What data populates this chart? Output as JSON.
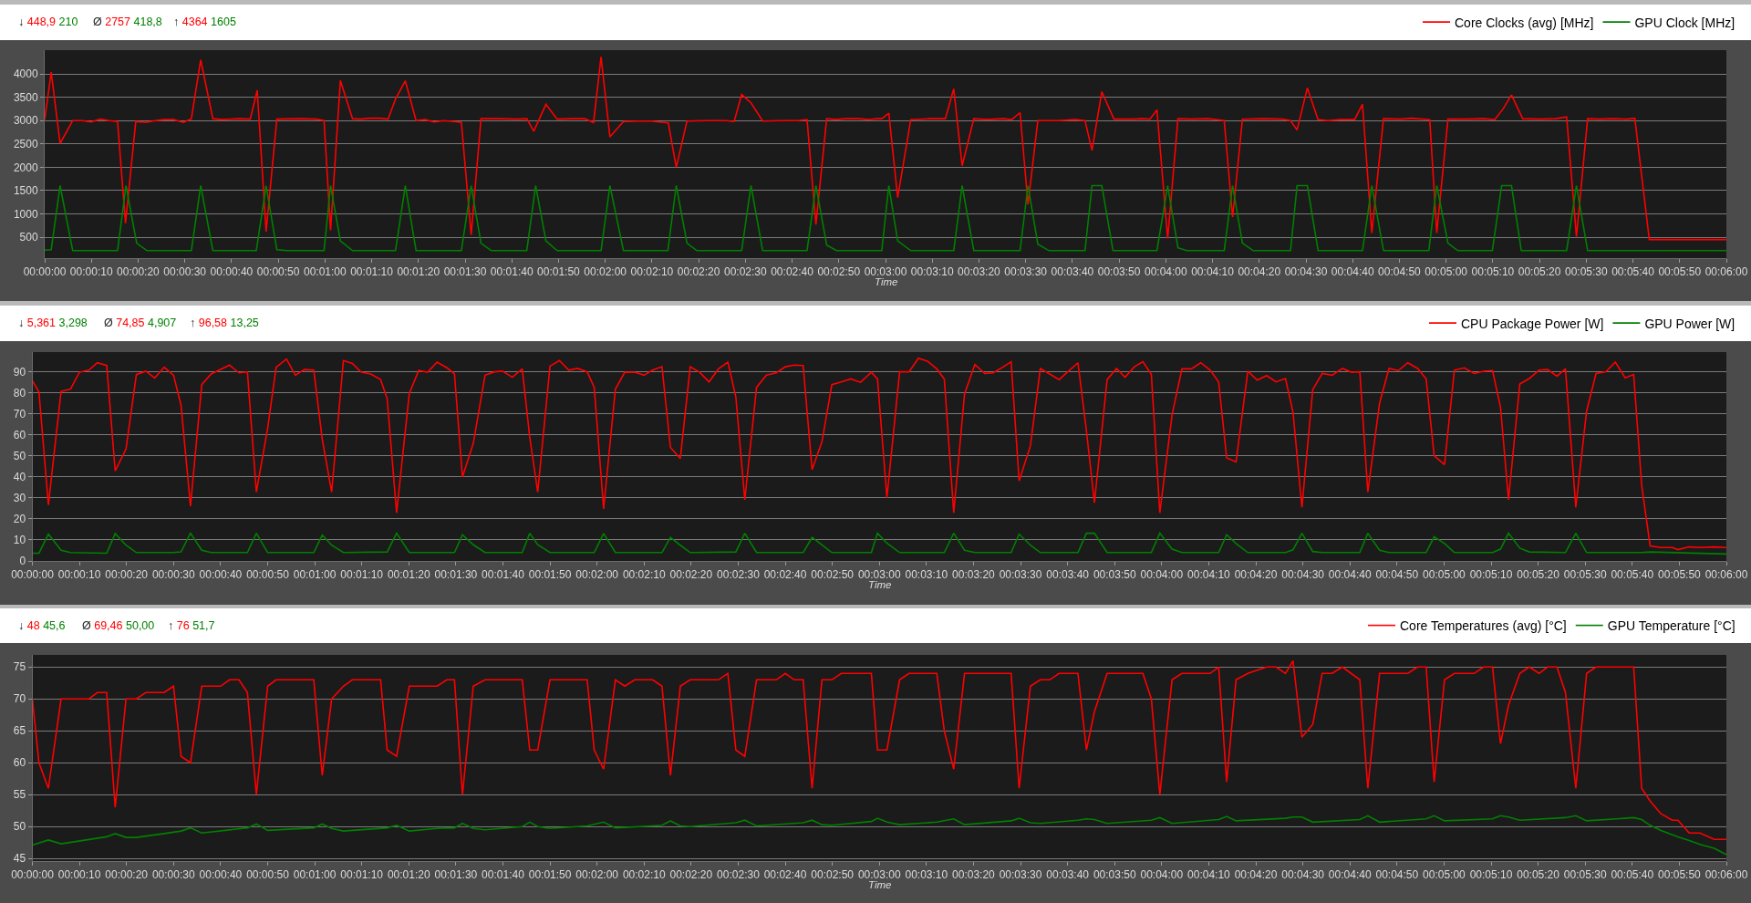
{
  "chart_data": [
    {
      "type": "line",
      "xlabel": "Time",
      "annotations": [
        "↓ 448,9 210",
        "Ø 2757 418,8",
        "↑ 4364 1605"
      ],
      "legend": "top right",
      "grid": "y",
      "xlim": [
        0,
        360
      ],
      "ylim": [
        50,
        4510
      ],
      "yticks": [
        500,
        1000,
        1500,
        2000,
        2500,
        3000,
        3500,
        4000
      ],
      "xticks": [
        {
          "value": 0,
          "label": "00:00:00"
        },
        {
          "value": 10,
          "label": "00:00:10"
        },
        {
          "value": 20,
          "label": "00:00:20"
        },
        {
          "value": 30,
          "label": "00:00:30"
        },
        {
          "value": 40,
          "label": "00:00:40"
        },
        {
          "value": 50,
          "label": "00:00:50"
        },
        {
          "value": 60,
          "label": "00:01:00"
        },
        {
          "value": 70,
          "label": "00:01:10"
        },
        {
          "value": 80,
          "label": "00:01:20"
        },
        {
          "value": 90,
          "label": "00:01:30"
        },
        {
          "value": 100,
          "label": "00:01:40"
        },
        {
          "value": 110,
          "label": "00:01:50"
        },
        {
          "value": 120,
          "label": "00:02:00"
        },
        {
          "value": 130,
          "label": "00:02:10"
        },
        {
          "value": 140,
          "label": "00:02:20"
        },
        {
          "value": 150,
          "label": "00:02:30"
        },
        {
          "value": 160,
          "label": "00:02:40"
        },
        {
          "value": 170,
          "label": "00:02:50"
        },
        {
          "value": 180,
          "label": "00:03:00"
        },
        {
          "value": 190,
          "label": "00:03:10"
        },
        {
          "value": 200,
          "label": "00:03:20"
        },
        {
          "value": 210,
          "label": "00:03:30"
        },
        {
          "value": 220,
          "label": "00:03:40"
        },
        {
          "value": 230,
          "label": "00:03:50"
        },
        {
          "value": 240,
          "label": "00:04:00"
        },
        {
          "value": 250,
          "label": "00:04:10"
        },
        {
          "value": 260,
          "label": "00:04:20"
        },
        {
          "value": 270,
          "label": "00:04:30"
        },
        {
          "value": 280,
          "label": "00:04:40"
        },
        {
          "value": 290,
          "label": "00:04:50"
        },
        {
          "value": 300,
          "label": "00:05:00"
        },
        {
          "value": 310,
          "label": "00:05:10"
        },
        {
          "value": 320,
          "label": "00:05:20"
        },
        {
          "value": 330,
          "label": "00:05:30"
        },
        {
          "value": 340,
          "label": "00:05:40"
        },
        {
          "value": 350,
          "label": "00:05:50"
        },
        {
          "value": 360,
          "label": "00:06:00"
        }
      ],
      "series": [
        {
          "name": "Core Clocks (avg) [MHz]",
          "color": "#ff0000",
          "x": [
            0,
            1.4,
            3.3,
            6.0,
            8.1,
            9.9,
            11.9,
            13.8,
            15.6,
            17.3,
            19.5,
            21.6,
            23.7,
            25.6,
            27.6,
            29.7,
            31.4,
            33.4,
            36.0,
            38.0,
            41.5,
            44.0,
            45.5,
            47.4,
            49.7,
            54.6,
            58.1,
            59.8,
            61.2,
            63.3,
            65.9,
            67.6,
            69.6,
            71.6,
            73.5,
            75.1,
            77.2,
            79.5,
            81.4,
            83.4,
            85.4,
            87.7,
            89.2,
            91.3,
            93.4,
            97.2,
            101.3,
            103.2,
            104.7,
            107.3,
            109.7,
            113.2,
            115.6,
            117.5,
            119.1,
            121.0,
            123.9,
            126.9,
            129.9,
            131.6,
            133.5,
            135.2,
            137.5,
            141.7,
            145.8,
            147.6,
            149.2,
            151.2,
            153.7,
            157.7,
            161.3,
            163.2,
            165.1,
            167.4,
            169.5,
            171.3,
            174.3,
            176.4,
            178.1,
            179.2,
            180.7,
            182.6,
            185.4,
            189.3,
            192.8,
            194.6,
            196.4,
            198.9,
            201.7,
            205.2,
            207.0,
            208.8,
            210.5,
            212.6,
            217.1,
            220.6,
            222.7,
            224.2,
            226.3,
            228.9,
            233.0,
            234.8,
            236.6,
            238.1,
            240.4,
            242.6,
            245.4,
            249.0,
            252.5,
            254.3,
            256.4,
            260.8,
            264.9,
            266.7,
            268.1,
            270.3,
            272.6,
            274.7,
            277.4,
            280.4,
            282.1,
            284.1,
            286.6,
            290.4,
            292.5,
            296.5,
            298.0,
            300.4,
            304.5,
            308.1,
            310.4,
            312.2,
            314.0,
            316.4,
            319.9,
            323.5,
            325.8,
            327.9,
            330.3,
            332.9,
            335.9,
            338.8,
            340.4,
            343.5,
            360
          ],
          "values": [
            3020,
            4040,
            2510,
            3000,
            3000,
            2970,
            3030,
            3000,
            2980,
            800,
            2980,
            2960,
            3000,
            3020,
            3020,
            2960,
            3040,
            4300,
            3040,
            3020,
            3040,
            3030,
            3650,
            620,
            3030,
            3040,
            3030,
            3000,
            650,
            3860,
            3040,
            3030,
            3050,
            3050,
            3030,
            3460,
            3850,
            3000,
            3020,
            2970,
            3000,
            2980,
            2960,
            550,
            3040,
            3040,
            3030,
            3040,
            2770,
            3350,
            3030,
            3040,
            3040,
            2960,
            4364,
            2650,
            2980,
            2990,
            2990,
            2970,
            2950,
            2000,
            2990,
            3000,
            3000,
            2980,
            3560,
            3380,
            2990,
            3000,
            3000,
            3020,
            770,
            3040,
            3020,
            3040,
            3040,
            3020,
            3040,
            3040,
            3160,
            1350,
            3020,
            3040,
            3040,
            3680,
            2030,
            3040,
            3020,
            3040,
            3020,
            3170,
            1200,
            3000,
            3000,
            3020,
            3000,
            2360,
            3620,
            3030,
            3030,
            3040,
            3030,
            3230,
            470,
            3040,
            3030,
            3040,
            3000,
            930,
            3030,
            3040,
            3030,
            3000,
            2800,
            3700,
            3020,
            3000,
            3020,
            3020,
            3350,
            590,
            3040,
            3030,
            3050,
            3020,
            590,
            3030,
            3030,
            3040,
            3020,
            3250,
            3550,
            3040,
            3030,
            3040,
            3080,
            510,
            3040,
            3030,
            3040,
            3030,
            3050,
            449,
            449
          ]
        },
        {
          "name": "GPU Clock [MHz]",
          "color": "#008000",
          "x": [
            0,
            1.4,
            3.3,
            6.0,
            15.6,
            17.4,
            19.7,
            21.9,
            31.4,
            33.4,
            36.0,
            45.3,
            47.4,
            49.7,
            51.9,
            59.8,
            61.2,
            63.3,
            65.9,
            75.1,
            77.2,
            79.5,
            89.2,
            91.3,
            93.4,
            95.6,
            103.2,
            105.1,
            107.3,
            109.7,
            119.1,
            121.0,
            123.9,
            133.4,
            135.2,
            137.5,
            139.6,
            149.2,
            151.2,
            153.7,
            163.2,
            165.1,
            167.4,
            169.5,
            179.2,
            180.7,
            182.6,
            185.4,
            194.6,
            196.4,
            198.9,
            208.8,
            210.5,
            212.6,
            215.0,
            222.7,
            224.2,
            226.3,
            228.7,
            238.1,
            240.4,
            242.6,
            244.5,
            252.5,
            254.3,
            256.4,
            258.7,
            266.7,
            268.1,
            270.3,
            272.6,
            282.1,
            284.1,
            286.6,
            296.3,
            298.0,
            300.4,
            302.5,
            309.9,
            311.9,
            314.0,
            316.1,
            325.8,
            327.9,
            330.3,
            360
          ],
          "values": [
            220,
            230,
            1605,
            210,
            210,
            1605,
            370,
            210,
            210,
            1605,
            210,
            210,
            1605,
            230,
            210,
            210,
            1605,
            420,
            210,
            210,
            1605,
            210,
            210,
            1605,
            370,
            210,
            210,
            1605,
            420,
            210,
            210,
            1605,
            210,
            210,
            1605,
            370,
            210,
            210,
            1605,
            210,
            210,
            1605,
            330,
            210,
            210,
            1605,
            420,
            210,
            210,
            1605,
            210,
            210,
            1605,
            350,
            210,
            210,
            1605,
            1605,
            210,
            210,
            1605,
            270,
            210,
            210,
            1605,
            370,
            210,
            210,
            1605,
            1605,
            210,
            210,
            1605,
            210,
            210,
            1605,
            370,
            210,
            210,
            1605,
            1605,
            210,
            210,
            1605,
            210,
            210
          ]
        }
      ]
    },
    {
      "type": "line",
      "xlabel": "Time",
      "annotations": [
        "↓ 5,361 3,298",
        "Ø 74,85 4,907",
        "↑ 96,58 13,25"
      ],
      "legend": "top right",
      "grid": "y",
      "xlim": [
        0,
        360
      ],
      "ylim": [
        0,
        99.5
      ],
      "yticks": [
        0,
        10,
        20,
        30,
        40,
        50,
        60,
        70,
        80,
        90
      ],
      "xticks": [
        {
          "value": 0,
          "label": "00:00:00"
        },
        {
          "value": 10,
          "label": "00:00:10"
        },
        {
          "value": 20,
          "label": "00:00:20"
        },
        {
          "value": 30,
          "label": "00:00:30"
        },
        {
          "value": 40,
          "label": "00:00:40"
        },
        {
          "value": 50,
          "label": "00:00:50"
        },
        {
          "value": 60,
          "label": "00:01:00"
        },
        {
          "value": 70,
          "label": "00:01:10"
        },
        {
          "value": 80,
          "label": "00:01:20"
        },
        {
          "value": 90,
          "label": "00:01:30"
        },
        {
          "value": 100,
          "label": "00:01:40"
        },
        {
          "value": 110,
          "label": "00:01:50"
        },
        {
          "value": 120,
          "label": "00:02:00"
        },
        {
          "value": 130,
          "label": "00:02:10"
        },
        {
          "value": 140,
          "label": "00:02:20"
        },
        {
          "value": 150,
          "label": "00:02:30"
        },
        {
          "value": 160,
          "label": "00:02:40"
        },
        {
          "value": 170,
          "label": "00:02:50"
        },
        {
          "value": 180,
          "label": "00:03:00"
        },
        {
          "value": 190,
          "label": "00:03:10"
        },
        {
          "value": 200,
          "label": "00:03:20"
        },
        {
          "value": 210,
          "label": "00:03:30"
        },
        {
          "value": 220,
          "label": "00:03:40"
        },
        {
          "value": 230,
          "label": "00:03:50"
        },
        {
          "value": 240,
          "label": "00:04:00"
        },
        {
          "value": 250,
          "label": "00:04:10"
        },
        {
          "value": 260,
          "label": "00:04:20"
        },
        {
          "value": 270,
          "label": "00:04:30"
        },
        {
          "value": 280,
          "label": "00:04:40"
        },
        {
          "value": 290,
          "label": "00:04:50"
        },
        {
          "value": 300,
          "label": "00:05:00"
        },
        {
          "value": 310,
          "label": "00:05:10"
        },
        {
          "value": 320,
          "label": "00:05:20"
        },
        {
          "value": 330,
          "label": "00:05:30"
        },
        {
          "value": 340,
          "label": "00:05:40"
        },
        {
          "value": 350,
          "label": "00:05:50"
        },
        {
          "value": 360,
          "label": "00:06:00"
        }
      ],
      "series": [
        {
          "name": "CPU Package Power [W]",
          "color": "#ff0000",
          "x": [
            0,
            1.4,
            3.4,
            6.1,
            8.1,
            10.0,
            12.0,
            13.8,
            15.8,
            17.6,
            19.9,
            22.1,
            24.1,
            26.0,
            28.0,
            30.0,
            31.6,
            33.6,
            36.0,
            38.0,
            41.9,
            43.9,
            45.7,
            47.6,
            50.0,
            51.8,
            54.0,
            55.9,
            57.8,
            59.8,
            61.6,
            63.6,
            66.1,
            68.0,
            69.9,
            71.9,
            74.0,
            75.4,
            77.4,
            80.1,
            82.1,
            84.0,
            86.0,
            88.1,
            89.7,
            91.4,
            93.7,
            96.2,
            98.2,
            99.9,
            102.0,
            104.1,
            105.7,
            107.4,
            110.0,
            112.0,
            114.0,
            115.9,
            117.9,
            119.4,
            121.4,
            123.9,
            125.9,
            128.0,
            130.0,
            131.8,
            133.8,
            135.6,
            137.7,
            139.8,
            141.8,
            143.8,
            145.8,
            147.8,
            149.5,
            151.4,
            153.9,
            156.0,
            158.1,
            160.0,
            161.9,
            163.8,
            165.7,
            167.8,
            169.9,
            171.9,
            173.9,
            176.0,
            178.3,
            179.6,
            181.6,
            184.3,
            186.3,
            188.3,
            190.2,
            192.2,
            193.8,
            195.8,
            198.1,
            200.3,
            202.4,
            204.2,
            206.2,
            208.0,
            209.7,
            212.1,
            214.2,
            216.2,
            218.2,
            220.2,
            222.2,
            224.0,
            225.7,
            228.4,
            230.4,
            232.2,
            234.2,
            236.0,
            237.8,
            239.6,
            242.2,
            244.3,
            246.3,
            248.3,
            250.3,
            252.1,
            253.8,
            255.8,
            258.3,
            260.3,
            262.3,
            264.3,
            266.3,
            267.9,
            269.8,
            272.1,
            274.1,
            276.2,
            278.4,
            280.3,
            282.1,
            283.8,
            286.3,
            288.3,
            290.3,
            292.3,
            294.4,
            296.2,
            297.9,
            300.1,
            302.2,
            304.3,
            306.4,
            308.4,
            310.3,
            312.0,
            313.7,
            316.1,
            318.1,
            320.2,
            322.0,
            324.0,
            325.8,
            328.0,
            330.3,
            332.3,
            334.4,
            336.4,
            338.5,
            340.3,
            342.0,
            343.8,
            346.1,
            348.5,
            349.7,
            352.1,
            354.4,
            357.4,
            360
          ],
          "values": [
            85.9,
            80.5,
            26.7,
            80.8,
            81.9,
            89.9,
            90.9,
            94.4,
            93.1,
            42.9,
            53.3,
            88.8,
            90.4,
            87.2,
            92.3,
            88.5,
            74.1,
            26.1,
            84.0,
            89.1,
            93.3,
            89.6,
            90.1,
            32.8,
            63.2,
            92.3,
            96.2,
            88.5,
            91.2,
            90.9,
            58.1,
            32.8,
            95.5,
            94.1,
            89.9,
            89.1,
            86.4,
            77.3,
            22.9,
            79.7,
            90.7,
            89.9,
            94.7,
            92.0,
            89.1,
            40.0,
            56.0,
            88.5,
            90.1,
            90.4,
            87.5,
            91.5,
            58.9,
            32.8,
            92.8,
            95.5,
            90.9,
            91.7,
            90.1,
            82.7,
            24.8,
            81.9,
            89.9,
            89.9,
            88.5,
            90.9,
            92.5,
            54.1,
            48.8,
            92.5,
            89.9,
            85.3,
            91.5,
            94.7,
            78.1,
            29.1,
            82.7,
            88.5,
            89.6,
            92.5,
            93.3,
            93.1,
            43.5,
            56.8,
            84.0,
            85.3,
            86.7,
            85.1,
            89.9,
            86.7,
            30.1,
            90.1,
            90.1,
            96.58,
            95.2,
            91.5,
            86.7,
            22.9,
            79.5,
            93.6,
            89.3,
            89.6,
            92.3,
            94.9,
            38.1,
            54.9,
            91.7,
            89.1,
            86.4,
            90.4,
            94.4,
            62.1,
            27.7,
            86.4,
            91.7,
            87.5,
            92.5,
            94.9,
            88.8,
            22.9,
            69.6,
            91.5,
            91.5,
            94.4,
            90.9,
            85.3,
            49.1,
            47.2,
            90.4,
            86.1,
            88.3,
            85.3,
            86.9,
            70.9,
            25.6,
            81.6,
            89.3,
            88.5,
            91.7,
            89.9,
            90.1,
            32.8,
            75.2,
            91.7,
            90.7,
            94.4,
            91.7,
            86.7,
            50.1,
            45.9,
            90.9,
            92.0,
            89.3,
            90.4,
            90.7,
            73.3,
            29.1,
            84.3,
            86.9,
            90.9,
            91.2,
            88.0,
            91.5,
            25.6,
            71.5,
            89.3,
            90.1,
            94.7,
            87.2,
            88.8,
            36.0,
            7.2,
            6.4,
            6.4,
            5.4,
            6.7,
            6.4,
            6.7,
            6.4
          ]
        },
        {
          "name": "GPU Power [W]",
          "color": "#008000",
          "x": [
            0,
            1.4,
            3.4,
            6.1,
            8.1,
            15.8,
            17.6,
            19.9,
            22.1,
            30.0,
            31.6,
            33.6,
            36.0,
            38.0,
            45.7,
            47.6,
            50.0,
            59.8,
            61.6,
            63.6,
            66.1,
            75.4,
            77.4,
            80.1,
            89.7,
            91.4,
            93.7,
            96.2,
            104.1,
            105.7,
            107.4,
            110.0,
            119.4,
            121.4,
            123.9,
            133.8,
            135.6,
            137.7,
            139.8,
            149.5,
            151.4,
            153.9,
            163.8,
            165.7,
            167.8,
            169.9,
            178.3,
            179.6,
            181.6,
            184.3,
            193.8,
            195.8,
            198.1,
            200.3,
            208.0,
            209.7,
            212.1,
            214.2,
            222.2,
            224.0,
            225.7,
            228.4,
            237.8,
            239.6,
            242.2,
            244.3,
            252.1,
            253.8,
            255.8,
            258.3,
            266.3,
            267.9,
            269.8,
            272.1,
            274.1,
            282.1,
            283.8,
            286.3,
            288.3,
            296.2,
            297.9,
            300.1,
            302.2,
            310.3,
            312.0,
            313.7,
            316.1,
            318.1,
            325.8,
            328.0,
            330.3,
            342.0,
            343.8,
            360
          ],
          "values": [
            3.7,
            3.7,
            12.8,
            5.1,
            4.0,
            3.7,
            13.1,
            7.5,
            4.0,
            4.0,
            4.3,
            13.25,
            5.1,
            4.0,
            4.0,
            13.2,
            4.0,
            4.0,
            12.3,
            7.5,
            4.0,
            4.3,
            13.2,
            4.0,
            4.0,
            12.5,
            7.7,
            4.0,
            4.0,
            13.2,
            7.7,
            4.0,
            4.0,
            13.1,
            4.0,
            4.0,
            11.2,
            7.5,
            4.0,
            4.3,
            13.2,
            4.0,
            4.0,
            11.2,
            7.7,
            4.0,
            4.0,
            13.2,
            8.5,
            4.0,
            4.0,
            13.2,
            5.1,
            4.0,
            4.0,
            12.8,
            7.5,
            4.0,
            4.0,
            13.2,
            13.2,
            4.0,
            4.0,
            13.2,
            5.6,
            4.0,
            4.0,
            12.5,
            8.3,
            4.0,
            4.0,
            5.3,
            13.2,
            4.5,
            4.0,
            4.0,
            13.2,
            5.1,
            4.0,
            4.0,
            11.5,
            8.3,
            4.0,
            4.0,
            5.6,
            13.2,
            6.1,
            4.3,
            4.0,
            13.2,
            4.0,
            4.0,
            4.3,
            3.3
          ]
        }
      ]
    },
    {
      "type": "line",
      "xlabel": "Time",
      "annotations": [
        "↓ 48 45,6",
        "Ø 69,46 50,00",
        "↑ 76 51,7"
      ],
      "legend": "top right",
      "grid": "y",
      "xlim": [
        0,
        360
      ],
      "ylim": [
        44.6,
        76.9
      ],
      "yticks": [
        45,
        50,
        55,
        60,
        65,
        70,
        75
      ],
      "xticks": [
        {
          "value": 0,
          "label": "00:00:00"
        },
        {
          "value": 10,
          "label": "00:00:10"
        },
        {
          "value": 20,
          "label": "00:00:20"
        },
        {
          "value": 30,
          "label": "00:00:30"
        },
        {
          "value": 40,
          "label": "00:00:40"
        },
        {
          "value": 50,
          "label": "00:00:50"
        },
        {
          "value": 60,
          "label": "00:01:00"
        },
        {
          "value": 70,
          "label": "00:01:10"
        },
        {
          "value": 80,
          "label": "00:01:20"
        },
        {
          "value": 90,
          "label": "00:01:30"
        },
        {
          "value": 100,
          "label": "00:01:40"
        },
        {
          "value": 110,
          "label": "00:01:50"
        },
        {
          "value": 120,
          "label": "00:02:00"
        },
        {
          "value": 130,
          "label": "00:02:10"
        },
        {
          "value": 140,
          "label": "00:02:20"
        },
        {
          "value": 150,
          "label": "00:02:30"
        },
        {
          "value": 160,
          "label": "00:02:40"
        },
        {
          "value": 170,
          "label": "00:02:50"
        },
        {
          "value": 180,
          "label": "00:03:00"
        },
        {
          "value": 190,
          "label": "00:03:10"
        },
        {
          "value": 200,
          "label": "00:03:20"
        },
        {
          "value": 210,
          "label": "00:03:30"
        },
        {
          "value": 220,
          "label": "00:03:40"
        },
        {
          "value": 230,
          "label": "00:03:50"
        },
        {
          "value": 240,
          "label": "00:04:00"
        },
        {
          "value": 250,
          "label": "00:04:10"
        },
        {
          "value": 260,
          "label": "00:04:20"
        },
        {
          "value": 270,
          "label": "00:04:30"
        },
        {
          "value": 280,
          "label": "00:04:40"
        },
        {
          "value": 290,
          "label": "00:04:50"
        },
        {
          "value": 300,
          "label": "00:05:00"
        },
        {
          "value": 310,
          "label": "00:05:10"
        },
        {
          "value": 320,
          "label": "00:05:20"
        },
        {
          "value": 330,
          "label": "00:05:30"
        },
        {
          "value": 340,
          "label": "00:05:40"
        },
        {
          "value": 350,
          "label": "00:05:50"
        },
        {
          "value": 360,
          "label": "00:06:00"
        }
      ],
      "series": [
        {
          "name": "Core Temperatures (avg) [°C]",
          "color": "#ff0000",
          "x": [
            0,
            1.4,
            3.4,
            6.1,
            12.0,
            13.8,
            15.8,
            17.6,
            19.9,
            22.1,
            24.1,
            28.0,
            30.0,
            31.6,
            33.6,
            36.0,
            40.0,
            41.9,
            43.9,
            45.7,
            47.6,
            50.0,
            51.8,
            59.8,
            61.6,
            63.6,
            66.1,
            68.0,
            74.0,
            75.4,
            77.4,
            80.1,
            86.0,
            88.1,
            89.7,
            91.4,
            93.7,
            96.2,
            104.1,
            105.7,
            107.4,
            110.0,
            117.9,
            119.4,
            121.4,
            123.9,
            125.9,
            128.0,
            131.8,
            133.8,
            135.6,
            137.7,
            139.8,
            145.8,
            147.8,
            149.5,
            151.4,
            153.9,
            158.1,
            160.0,
            161.9,
            163.8,
            165.7,
            167.8,
            169.9,
            171.9,
            178.3,
            179.6,
            181.6,
            184.3,
            186.3,
            192.2,
            193.8,
            195.8,
            198.1,
            208.0,
            209.7,
            212.1,
            214.2,
            216.2,
            218.2,
            222.2,
            224.0,
            225.7,
            228.4,
            236.0,
            237.8,
            239.6,
            242.2,
            244.3,
            250.3,
            252.1,
            253.8,
            255.8,
            258.3,
            262.3,
            264.3,
            266.3,
            267.9,
            269.8,
            272.1,
            274.1,
            276.2,
            278.4,
            282.1,
            283.8,
            286.3,
            292.3,
            294.4,
            296.2,
            297.9,
            300.1,
            302.2,
            306.4,
            308.4,
            310.3,
            312.0,
            313.7,
            316.1,
            318.1,
            320.2,
            322.0,
            324.0,
            325.8,
            328.0,
            330.3,
            332.3,
            340.3,
            342.0,
            343.8,
            346.1,
            348.5,
            349.7,
            352.1,
            354.4,
            357.4,
            360
          ],
          "values": [
            70,
            60,
            56,
            70,
            70,
            71,
            71,
            53,
            70,
            70,
            71,
            71,
            72,
            61,
            60,
            72,
            72,
            73,
            73,
            71,
            55,
            72,
            73,
            73,
            58,
            70,
            72,
            73,
            73,
            62,
            61,
            72,
            72,
            73,
            73,
            55,
            72,
            73,
            73,
            62,
            62,
            73,
            73,
            62,
            59,
            73,
            72,
            73,
            73,
            72,
            58,
            72,
            73,
            73,
            74,
            62,
            61,
            73,
            73,
            74,
            73,
            73,
            56,
            73,
            73,
            74,
            74,
            62,
            62,
            73,
            74,
            74,
            65,
            59,
            74,
            74,
            56,
            72,
            73,
            73,
            74,
            74,
            62,
            68,
            74,
            74,
            70,
            55,
            73,
            74,
            74,
            75,
            57,
            73,
            74,
            75,
            75,
            74,
            76,
            64,
            66,
            74,
            74,
            75,
            73,
            56,
            74,
            74,
            75,
            75,
            57,
            73,
            74,
            74,
            75,
            75,
            63,
            69,
            74,
            75,
            74,
            75,
            75,
            71,
            56,
            74,
            75,
            75,
            56,
            54,
            52,
            51,
            51,
            49,
            49,
            48,
            48
          ]
        },
        {
          "name": "GPU Temperature [°C]",
          "color": "#008000",
          "x": [
            0,
            3.4,
            6.1,
            15.8,
            17.6,
            19.9,
            22.1,
            28.0,
            31.6,
            33.6,
            36.0,
            45.7,
            47.6,
            50.0,
            59.8,
            61.6,
            63.6,
            66.1,
            75.4,
            77.4,
            80.1,
            86.0,
            89.7,
            91.4,
            93.7,
            96.2,
            104.1,
            105.7,
            107.4,
            110.0,
            117.9,
            121.4,
            123.9,
            131.8,
            133.8,
            135.6,
            137.7,
            139.8,
            149.5,
            151.4,
            153.9,
            163.8,
            165.7,
            167.8,
            169.9,
            178.3,
            179.6,
            181.6,
            184.3,
            192.2,
            195.8,
            198.1,
            208.0,
            209.7,
            212.1,
            214.2,
            222.2,
            224.0,
            225.7,
            228.4,
            237.8,
            239.6,
            242.2,
            252.1,
            253.8,
            255.8,
            266.3,
            267.9,
            269.8,
            272.1,
            282.1,
            283.8,
            286.3,
            296.2,
            297.9,
            300.1,
            310.3,
            312.0,
            313.7,
            316.1,
            325.8,
            328.0,
            330.3,
            340.3,
            342.0,
            343.8,
            346.1,
            349.7,
            352.1,
            354.4,
            357.4,
            360
          ],
          "values": [
            47.1,
            47.9,
            47.3,
            48.4,
            48.9,
            48.3,
            48.3,
            48.9,
            49.3,
            49.8,
            49.0,
            49.8,
            50.4,
            49.4,
            49.8,
            50.4,
            49.7,
            49.3,
            49.8,
            50.2,
            49.3,
            49.7,
            49.8,
            50.5,
            49.7,
            49.5,
            50.0,
            50.7,
            50.0,
            49.7,
            50.1,
            50.7,
            49.8,
            50.1,
            50.2,
            50.9,
            50.1,
            50.0,
            50.6,
            51.0,
            50.1,
            50.6,
            51.0,
            50.3,
            50.2,
            50.8,
            51.3,
            50.7,
            50.3,
            50.7,
            51.2,
            50.3,
            50.9,
            51.3,
            50.6,
            50.5,
            51.0,
            51.2,
            51.1,
            50.5,
            51.0,
            51.4,
            50.5,
            51.1,
            51.6,
            50.9,
            51.3,
            51.5,
            51.5,
            50.7,
            51.1,
            51.7,
            50.7,
            51.2,
            51.7,
            50.9,
            51.2,
            51.7,
            51.5,
            51.0,
            51.4,
            51.7,
            50.9,
            51.4,
            51.1,
            50.2,
            49.4,
            48.4,
            47.8,
            47.2,
            46.6,
            45.6
          ]
        }
      ]
    }
  ]
}
